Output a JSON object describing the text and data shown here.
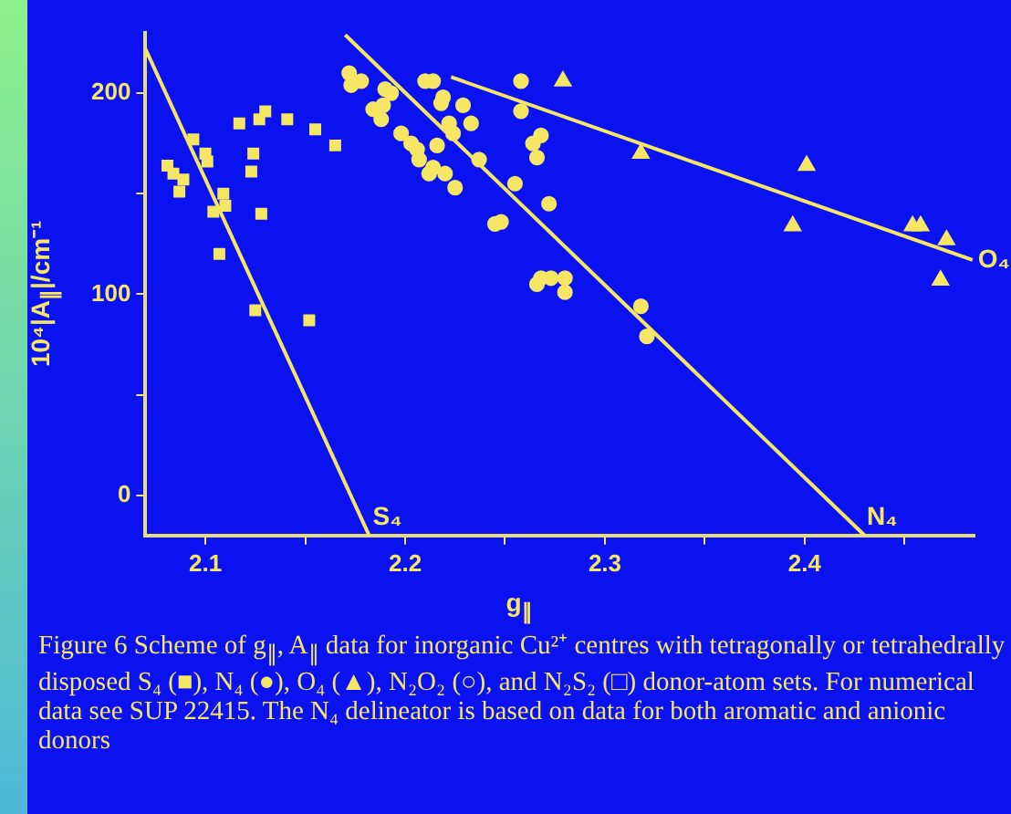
{
  "chart_data": {
    "type": "scatter",
    "xlabel": "g$_{∥}$",
    "ylabel": "10⁴|A$_{∥}$|/cm⁻¹",
    "xlim": [
      2.07,
      2.485
    ],
    "ylim": [
      -20,
      230
    ],
    "xticks": [
      2.1,
      {
        "value": 2.15,
        "label": null
      },
      2.2,
      {
        "value": 2.25,
        "label": null
      },
      2.3,
      {
        "value": 2.35,
        "label": null
      },
      2.4,
      {
        "value": 2.45,
        "label": null
      }
    ],
    "yticks": [
      0,
      {
        "value": 50,
        "label": null
      },
      100,
      {
        "value": 150,
        "label": null
      },
      200
    ],
    "grid": false,
    "legend": false,
    "series": [
      {
        "marker": "square",
        "color": "#f5e663",
        "x": [
          2.081,
          2.084,
          2.089,
          2.087,
          2.094,
          2.1,
          2.101,
          2.104,
          2.109,
          2.11,
          2.107,
          2.125,
          2.128,
          2.124,
          2.123
        ],
        "values": [
          164,
          160,
          157,
          151,
          177,
          170,
          166,
          141,
          150,
          144,
          120,
          92,
          140,
          170,
          161
        ]
      },
      {
        "marker": "circle",
        "color": "#f5e663",
        "x": [
          2.172,
          2.173,
          2.178,
          2.184,
          2.189,
          2.188,
          2.198,
          2.203,
          2.206,
          2.207,
          2.212,
          2.214,
          2.216,
          2.22,
          2.225,
          2.21,
          2.214,
          2.218,
          2.219,
          2.229,
          2.233,
          2.245,
          2.248,
          2.258,
          2.258,
          2.264,
          2.268,
          2.266,
          2.266,
          2.268,
          2.273,
          2.28,
          2.28,
          2.318,
          2.321
        ],
        "values": [
          210,
          204,
          206,
          192,
          194,
          187,
          180,
          175,
          172,
          167,
          160,
          163,
          174,
          160,
          153,
          206,
          206,
          195,
          198,
          194,
          185,
          135,
          136,
          206,
          191,
          175,
          179,
          168,
          105,
          108,
          108,
          108,
          101,
          94,
          79
        ]
      },
      {
        "marker": "triangle",
        "color": "#f5e663",
        "x": [
          2.279,
          2.318,
          2.401,
          2.394,
          2.454,
          2.458,
          2.471,
          2.468
        ],
        "values": [
          206,
          170,
          164,
          134,
          134,
          134,
          127,
          107
        ]
      },
      {
        "marker": "circle",
        "color": "#f5e663",
        "x": [
          2.19,
          2.193,
          2.222,
          2.224,
          2.237,
          2.255,
          2.272
        ],
        "values": [
          202,
          200,
          185,
          180,
          167,
          155,
          145
        ]
      },
      {
        "marker": "square",
        "color": "#f5e663",
        "x": [
          2.117,
          2.127,
          2.13,
          2.141,
          2.155,
          2.165,
          2.152
        ],
        "values": [
          185,
          187,
          191,
          187,
          182,
          174,
          87
        ]
      },
      {
        "type": "line",
        "marker": "none",
        "color": "#f5e663",
        "x": [
          2.07,
          2.182
        ],
        "values": [
          222,
          -20
        ]
      },
      {
        "type": "line",
        "marker": "none",
        "color": "#f5e663",
        "x": [
          2.17,
          2.43
        ],
        "values": [
          229,
          -20
        ]
      },
      {
        "type": "line",
        "marker": "none",
        "color": "#f5e663",
        "x": [
          2.223,
          2.484
        ],
        "values": [
          208,
          117
        ]
      }
    ],
    "annotations": [
      {
        "text": "S₄",
        "x": 2.182,
        "y": -20
      },
      {
        "text": "N₄",
        "x": 2.43,
        "y": -20
      },
      {
        "text": "O₄",
        "x": 2.484,
        "y": 117
      },
      "Figure 6   Scheme of g$_{∥}$, A$_{∥}$ data for inorganic Cu²⁺ centres with tetragonally or tetrahedrally disposed S₄ (■), N₄ (●), O₄ (▲), N₂O₂ (○), and N₂S₂ (□) donor-atom sets.  For numerical data see SUP 22415.  The N₄ delineator is based on data for both aromatic and anionic donors"
    ]
  }
}
